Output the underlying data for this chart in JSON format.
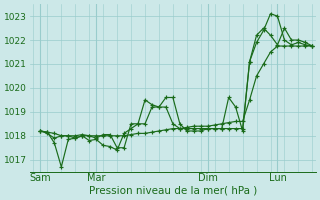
{
  "xlabel": "Pression niveau de la mer( hPa )",
  "background_color": "#cce8e8",
  "grid_color": "#99cccc",
  "line_color": "#1a6b1a",
  "ylim": [
    1016.5,
    1023.5
  ],
  "xlim": [
    -0.5,
    40.5
  ],
  "day_labels": [
    "Sam",
    "Mar",
    "Dim",
    "Lun"
  ],
  "day_positions": [
    1,
    9,
    25,
    35
  ],
  "yticks": [
    1017,
    1018,
    1019,
    1020,
    1021,
    1022,
    1023
  ],
  "series1_x": [
    1,
    2,
    3,
    4,
    5,
    6,
    7,
    8,
    9,
    10,
    11,
    12,
    13,
    14,
    15,
    16,
    17,
    18,
    19,
    20,
    21,
    22,
    23,
    24,
    25,
    26,
    27,
    28,
    29,
    30,
    31,
    32,
    33,
    34,
    35,
    36,
    37,
    38,
    39,
    40
  ],
  "series1_y": [
    1018.2,
    1018.15,
    1017.7,
    1016.7,
    1017.85,
    1017.9,
    1018.0,
    1017.8,
    1017.85,
    1017.6,
    1017.55,
    1017.4,
    1018.1,
    1018.3,
    1018.5,
    1019.5,
    1019.3,
    1019.2,
    1019.6,
    1019.6,
    1018.5,
    1018.2,
    1018.2,
    1018.2,
    1018.3,
    1018.3,
    1018.3,
    1019.6,
    1019.2,
    1018.2,
    1021.1,
    1021.9,
    1022.4,
    1023.1,
    1023.0,
    1022.0,
    1021.8,
    1021.9,
    1021.8,
    1021.75
  ],
  "series2_x": [
    1,
    2,
    3,
    4,
    5,
    6,
    7,
    8,
    9,
    10,
    11,
    12,
    13,
    14,
    15,
    16,
    17,
    18,
    19,
    20,
    21,
    22,
    23,
    24,
    25,
    26,
    27,
    28,
    29,
    30,
    31,
    32,
    33,
    34,
    35,
    36,
    37,
    38,
    39,
    40
  ],
  "series2_y": [
    1018.2,
    1018.15,
    1018.1,
    1018.0,
    1018.0,
    1018.0,
    1018.05,
    1018.0,
    1018.0,
    1018.0,
    1018.0,
    1018.0,
    1018.0,
    1018.05,
    1018.1,
    1018.1,
    1018.15,
    1018.2,
    1018.25,
    1018.3,
    1018.3,
    1018.35,
    1018.4,
    1018.4,
    1018.4,
    1018.45,
    1018.5,
    1018.55,
    1018.6,
    1018.6,
    1019.5,
    1020.5,
    1021.0,
    1021.5,
    1021.75,
    1021.75,
    1021.75,
    1021.75,
    1021.75,
    1021.75
  ],
  "series3_x": [
    1,
    2,
    3,
    4,
    5,
    6,
    7,
    8,
    9,
    10,
    11,
    12,
    13,
    14,
    15,
    16,
    17,
    18,
    19,
    20,
    21,
    22,
    23,
    24,
    25,
    26,
    27,
    28,
    29,
    30,
    31,
    32,
    33,
    34,
    35,
    36,
    37,
    38,
    39,
    40
  ],
  "series3_y": [
    1018.2,
    1018.1,
    1017.9,
    1018.0,
    1018.0,
    1017.9,
    1018.0,
    1018.0,
    1017.9,
    1018.05,
    1018.05,
    1017.5,
    1017.5,
    1018.5,
    1018.5,
    1018.5,
    1019.2,
    1019.2,
    1019.2,
    1018.5,
    1018.3,
    1018.3,
    1018.3,
    1018.3,
    1018.3,
    1018.3,
    1018.3,
    1018.3,
    1018.3,
    1018.3,
    1021.1,
    1022.2,
    1022.5,
    1022.2,
    1021.8,
    1022.5,
    1022.0,
    1022.0,
    1021.9,
    1021.75
  ]
}
